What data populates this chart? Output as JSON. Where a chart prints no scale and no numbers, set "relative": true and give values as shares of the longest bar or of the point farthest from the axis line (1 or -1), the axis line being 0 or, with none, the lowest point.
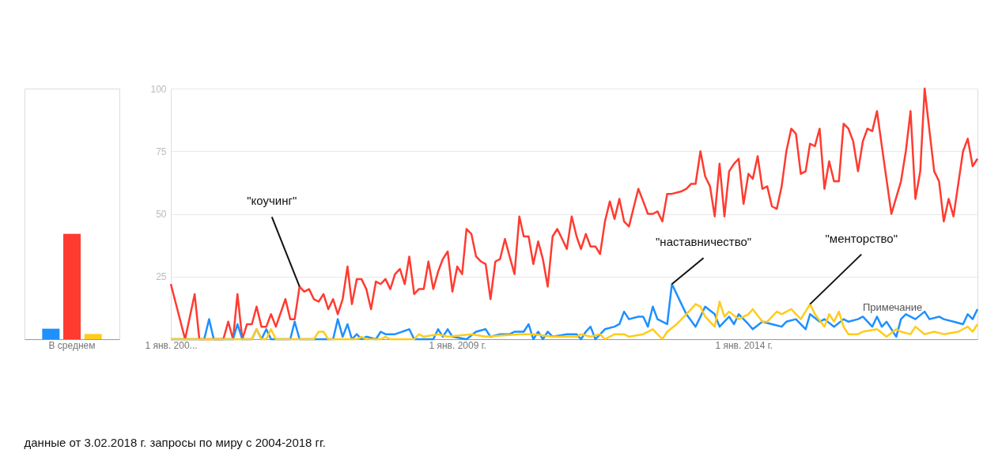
{
  "chart_data": [
    {
      "type": "bar",
      "categories": [
        "В среднем"
      ],
      "relative": true,
      "tick_labels": "x",
      "grid": false,
      "legend": false,
      "series": [
        {
          "color": "#1e90ff",
          "values": [
            0.1
          ]
        },
        {
          "color": "#ff3b30",
          "values": [
            1
          ]
        },
        {
          "color": "#ffcc1a",
          "values": [
            0.05
          ]
        }
      ]
    },
    {
      "type": "line",
      "xlim": [
        "2004-01",
        "2018-02"
      ],
      "ylim": [
        0,
        100
      ],
      "yticks": [
        25,
        50,
        75,
        100
      ],
      "xticks": [
        {
          "value": "2004-01-01",
          "label": "1 янв. 200..."
        },
        {
          "value": "2009-01-01",
          "label": "1 янв. 2009 г."
        },
        {
          "value": "2014-01-01",
          "label": "1 янв. 2014 г."
        }
      ],
      "grid": "y",
      "legend": false,
      "marker": "none",
      "line_style": "solid",
      "series": [
        {
          "color": "#ff3b30",
          "x": [
            "2004-01",
            "2004-04",
            "2004-06",
            "2004-07",
            "2004-12",
            "2005-01",
            "2005-02",
            "2005-03",
            "2005-04",
            "2005-05",
            "2005-06",
            "2005-07",
            "2005-08",
            "2005-09",
            "2005-10",
            "2005-11",
            "2006-01",
            "2006-02",
            "2006-03",
            "2006-04",
            "2006-05",
            "2006-06",
            "2006-07",
            "2006-08",
            "2006-09",
            "2006-10",
            "2006-11",
            "2006-12",
            "2007-01",
            "2007-02",
            "2007-03",
            "2007-04",
            "2007-05",
            "2007-06",
            "2007-07",
            "2007-08",
            "2007-09",
            "2007-10",
            "2007-11",
            "2007-12",
            "2008-01",
            "2008-02",
            "2008-03",
            "2008-04",
            "2008-05",
            "2008-06",
            "2008-07",
            "2008-08",
            "2008-09",
            "2008-10",
            "2008-11",
            "2008-12",
            "2009-01",
            "2009-02",
            "2009-03",
            "2009-04",
            "2009-05",
            "2009-06",
            "2009-07",
            "2009-08",
            "2009-09",
            "2009-10",
            "2009-11",
            "2009-12",
            "2010-01",
            "2010-02",
            "2010-03",
            "2010-04",
            "2010-05",
            "2010-06",
            "2010-07",
            "2010-08",
            "2010-09",
            "2010-10",
            "2010-11",
            "2010-12",
            "2011-01",
            "2011-02",
            "2011-03",
            "2011-04",
            "2011-05",
            "2011-06",
            "2011-07",
            "2011-08",
            "2011-09",
            "2011-10",
            "2011-11",
            "2011-12",
            "2012-01",
            "2012-03",
            "2012-04",
            "2012-05",
            "2012-06",
            "2012-07",
            "2012-08",
            "2012-09",
            "2012-10",
            "2012-12",
            "2013-01",
            "2013-02",
            "2013-03",
            "2013-04",
            "2013-05",
            "2013-06",
            "2013-07",
            "2013-08",
            "2013-09",
            "2013-10",
            "2013-11",
            "2013-12",
            "2014-01",
            "2014-02",
            "2014-03",
            "2014-04",
            "2014-05",
            "2014-06",
            "2014-07",
            "2014-08",
            "2014-09",
            "2014-10",
            "2014-11",
            "2014-12",
            "2015-01",
            "2015-02",
            "2015-03",
            "2015-04",
            "2015-05",
            "2015-06",
            "2015-07",
            "2015-08",
            "2015-09",
            "2015-10",
            "2015-11",
            "2015-12",
            "2016-01",
            "2016-02",
            "2016-03",
            "2016-04",
            "2016-05",
            "2016-06",
            "2016-08",
            "2016-10",
            "2016-11",
            "2016-12",
            "2017-01",
            "2017-02",
            "2017-03",
            "2017-04",
            "2017-05",
            "2017-06",
            "2017-07",
            "2017-08",
            "2017-09",
            "2017-11",
            "2017-12",
            "2018-01",
            "2018-02"
          ],
          "values": [
            22,
            0,
            18,
            0,
            0,
            7,
            0,
            18,
            0,
            6,
            6,
            13,
            5,
            5,
            10,
            5,
            16,
            8,
            8,
            21,
            19,
            20,
            16,
            15,
            18,
            12,
            16,
            10,
            16,
            29,
            14,
            24,
            24,
            20,
            12,
            23,
            22,
            24,
            20,
            26,
            28,
            22,
            33,
            18,
            20,
            20,
            31,
            20,
            27,
            32,
            35,
            19,
            29,
            26,
            44,
            42,
            33,
            31,
            30,
            16,
            31,
            32,
            40,
            33,
            26,
            49,
            41,
            41,
            30,
            39,
            32,
            21,
            41,
            44,
            40,
            36,
            49,
            41,
            36,
            42,
            37,
            37,
            34,
            47,
            55,
            48,
            56,
            47,
            45,
            60,
            55,
            50,
            50,
            51,
            47,
            58,
            58,
            59,
            60,
            62,
            62,
            75,
            65,
            61,
            49,
            70,
            49,
            67,
            70,
            72,
            54,
            66,
            64,
            73,
            60,
            61,
            53,
            52,
            61,
            75,
            84,
            82,
            66,
            67,
            78,
            77,
            84,
            60,
            71,
            63,
            63,
            86,
            84,
            79,
            67,
            79,
            84,
            83,
            91,
            77,
            50,
            63,
            75,
            91,
            56,
            67,
            100,
            83,
            67,
            63,
            47,
            56,
            49,
            75,
            80,
            69,
            72
          ]
        },
        {
          "color": "#1e90ff",
          "x": [
            "2004-01",
            "2004-08",
            "2004-09",
            "2004-10",
            "2005-02",
            "2005-03",
            "2005-04",
            "2005-06",
            "2005-07",
            "2005-08",
            "2005-09",
            "2005-10",
            "2006-02",
            "2006-03",
            "2006-04",
            "2006-11",
            "2006-12",
            "2007-01",
            "2007-02",
            "2007-03",
            "2007-04",
            "2007-05",
            "2007-06",
            "2007-08",
            "2007-09",
            "2007-10",
            "2007-12",
            "2008-03",
            "2008-04",
            "2008-08",
            "2008-09",
            "2008-10",
            "2008-11",
            "2008-12",
            "2009-03",
            "2009-05",
            "2009-07",
            "2009-08",
            "2009-10",
            "2009-12",
            "2010-01",
            "2010-03",
            "2010-04",
            "2010-05",
            "2010-06",
            "2010-07",
            "2010-08",
            "2010-09",
            "2010-12",
            "2011-02",
            "2011-03",
            "2011-04",
            "2011-05",
            "2011-06",
            "2011-08",
            "2011-10",
            "2011-11",
            "2011-12",
            "2012-01",
            "2012-03",
            "2012-04",
            "2012-05",
            "2012-06",
            "2012-07",
            "2012-09",
            "2012-10",
            "2012-12",
            "2013-01",
            "2013-03",
            "2013-04",
            "2013-05",
            "2013-07",
            "2013-08",
            "2013-10",
            "2013-11",
            "2013-12",
            "2014-02",
            "2014-03",
            "2014-05",
            "2014-07",
            "2014-09",
            "2014-10",
            "2014-12",
            "2015-02",
            "2015-03",
            "2015-05",
            "2015-06",
            "2015-08",
            "2015-10",
            "2015-11",
            "2016-01",
            "2016-02",
            "2016-04",
            "2016-05",
            "2016-06",
            "2016-07",
            "2016-09",
            "2016-10",
            "2016-11",
            "2017-01",
            "2017-03",
            "2017-04",
            "2017-06",
            "2017-07",
            "2017-09",
            "2017-11",
            "2017-12",
            "2018-01",
            "2018-02"
          ],
          "values": [
            0,
            0,
            8,
            0,
            0,
            6,
            0,
            0,
            4,
            0,
            4,
            0,
            0,
            7,
            0,
            0,
            8,
            1,
            6,
            0,
            2,
            0,
            1,
            0,
            3,
            2,
            2,
            4,
            0,
            0,
            4,
            1,
            4,
            1,
            0,
            3,
            4,
            1,
            2,
            2,
            3,
            3,
            6,
            0,
            3,
            0,
            3,
            1,
            2,
            2,
            0,
            3,
            5,
            0,
            4,
            5,
            6,
            11,
            8,
            9,
            9,
            5,
            13,
            8,
            6,
            22,
            14,
            10,
            5,
            9,
            13,
            10,
            5,
            9,
            6,
            10,
            6,
            4,
            7,
            6,
            5,
            7,
            8,
            4,
            10,
            7,
            8,
            5,
            8,
            7,
            8,
            9,
            5,
            9,
            5,
            7,
            1,
            8,
            10,
            8,
            11,
            8,
            9,
            8,
            7,
            6,
            10,
            8,
            12
          ]
        },
        {
          "color": "#ffcc1a",
          "x": [
            "2004-01",
            "2005-06",
            "2005-07",
            "2005-08",
            "2005-09",
            "2005-10",
            "2005-11",
            "2006-07",
            "2006-08",
            "2006-09",
            "2006-10",
            "2007-04",
            "2007-05",
            "2007-06",
            "2007-09",
            "2007-10",
            "2007-11",
            "2008-04",
            "2008-05",
            "2008-06",
            "2008-09",
            "2008-11",
            "2009-04",
            "2009-07",
            "2010-02",
            "2010-05",
            "2010-09",
            "2011-02",
            "2011-03",
            "2011-05",
            "2011-07",
            "2011-08",
            "2011-10",
            "2011-12",
            "2012-01",
            "2012-04",
            "2012-06",
            "2012-08",
            "2012-09",
            "2012-11",
            "2013-01",
            "2013-02",
            "2013-03",
            "2013-04",
            "2013-05",
            "2013-07",
            "2013-08",
            "2013-09",
            "2013-10",
            "2013-12",
            "2014-02",
            "2014-03",
            "2014-05",
            "2014-06",
            "2014-08",
            "2014-09",
            "2014-11",
            "2015-01",
            "2015-03",
            "2015-04",
            "2015-06",
            "2015-07",
            "2015-08",
            "2015-09",
            "2015-10",
            "2015-11",
            "2016-01",
            "2016-02",
            "2016-05",
            "2016-07",
            "2016-09",
            "2016-10",
            "2016-12",
            "2017-01",
            "2017-03",
            "2017-05",
            "2017-07",
            "2017-10",
            "2017-12",
            "2018-01",
            "2018-02"
          ],
          "values": [
            0,
            0,
            4,
            0,
            0,
            4,
            0,
            0,
            3,
            3,
            0,
            0,
            1,
            0,
            0,
            1,
            0,
            0,
            2,
            1,
            2,
            1,
            2,
            1,
            2,
            2,
            1,
            1,
            2,
            1,
            2,
            0,
            2,
            2,
            1,
            2,
            4,
            0,
            3,
            6,
            10,
            12,
            14,
            13,
            9,
            5,
            15,
            9,
            11,
            8,
            10,
            12,
            7,
            7,
            11,
            10,
            12,
            8,
            14,
            10,
            5,
            10,
            7,
            11,
            5,
            2,
            2,
            3,
            4,
            1,
            4,
            3,
            2,
            5,
            2,
            3,
            2,
            3,
            5,
            3,
            6
          ]
        }
      ],
      "annotations": [
        {
          "text": "\"коучинг\"",
          "x": "2006-04",
          "y": 21
        },
        {
          "text": "\"наставничество\"",
          "x": "2012-10",
          "y": 22
        },
        {
          "text": "\"менторство\"",
          "x": "2015-03",
          "y": 14
        },
        "Примечание",
        "данные от 3.02.2018 г.   запросы по миру  с 2004-2018 гг."
      ]
    }
  ]
}
